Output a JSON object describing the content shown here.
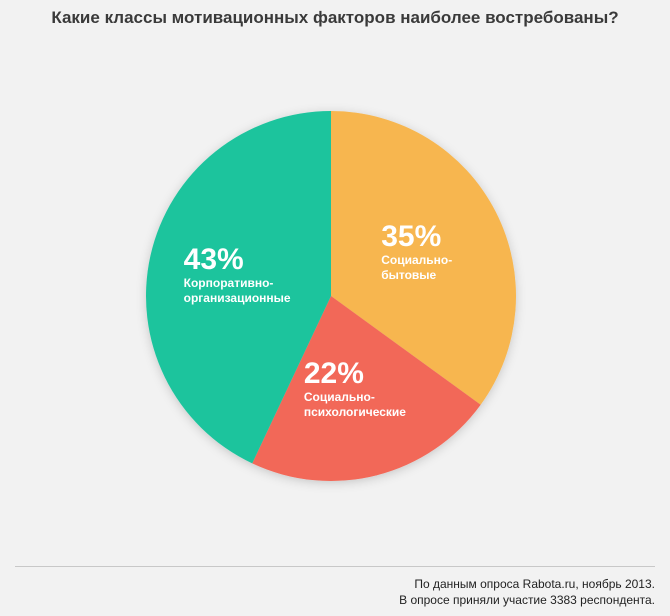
{
  "chart_data": {
    "type": "pie",
    "title": "Какие классы мотивационных факторов наиболее востребованы?",
    "categories": [
      "Социально-\nбытовые",
      "Социально-\nпсихологические",
      "Корпоративно-\nорганизационные"
    ],
    "values": [
      35,
      22,
      43
    ],
    "value_labels": [
      "35%",
      "22%",
      "43%"
    ],
    "colors": [
      "#f7b64f",
      "#f26858",
      "#1fc49d"
    ],
    "start_angle": 0,
    "direction": "clockwise"
  },
  "source": [
    "По данным опроса Rabota.ru, ноябрь 2013.",
    "В опросе приняли участие 3383 респондента."
  ]
}
